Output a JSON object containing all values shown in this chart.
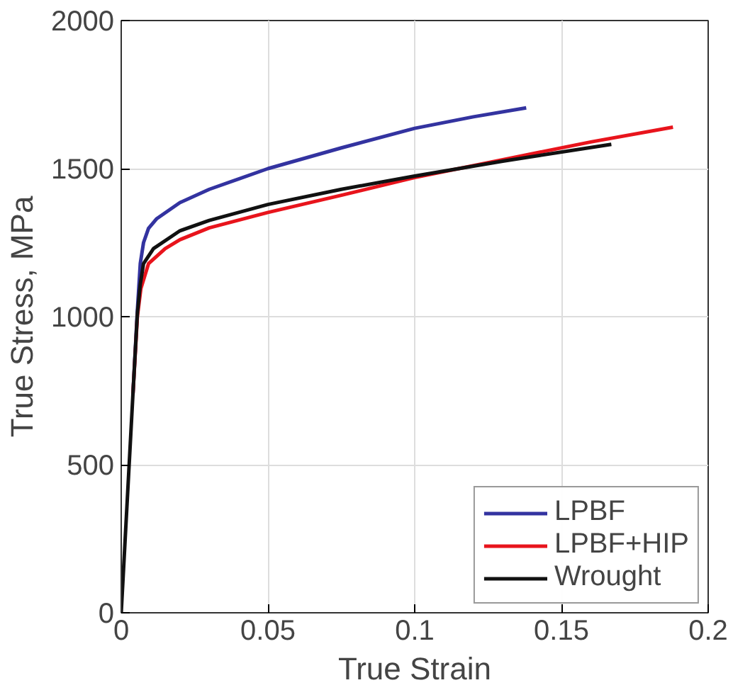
{
  "chart_data": {
    "type": "line",
    "xlabel": "True Strain",
    "ylabel": "True Stress, MPa",
    "xlim": [
      0,
      0.2
    ],
    "ylim": [
      0,
      2000
    ],
    "xticks": [
      0,
      0.05,
      0.1,
      0.15,
      0.2
    ],
    "yticks": [
      0,
      500,
      1000,
      1500,
      2000
    ],
    "grid": true,
    "legend": "bottom right",
    "line_style": "solid",
    "series": [
      {
        "name": "LPBF",
        "color": "#3333a0",
        "x": [
          0.004,
          0.0055,
          0.0065,
          0.0076,
          0.0093,
          0.012,
          0.02,
          0.03,
          0.05,
          0.075,
          0.1,
          0.12,
          0.138
        ],
        "values": [
          740,
          1020,
          1180,
          1250,
          1298,
          1330,
          1385,
          1430,
          1500,
          1570,
          1636,
          1675,
          1705
        ]
      },
      {
        "name": "LPBF+HIP",
        "color": "#e8141c",
        "x": [
          0.004,
          0.0055,
          0.0067,
          0.0093,
          0.015,
          0.02,
          0.03,
          0.05,
          0.075,
          0.1,
          0.13,
          0.16,
          0.188
        ],
        "values": [
          740,
          1000,
          1095,
          1179,
          1230,
          1260,
          1300,
          1352,
          1410,
          1470,
          1530,
          1590,
          1640
        ]
      },
      {
        "name": "Wrought",
        "color": "#111111",
        "x": [
          0,
          0.002,
          0.004,
          0.0055,
          0.0065,
          0.0076,
          0.011,
          0.02,
          0.03,
          0.05,
          0.075,
          0.1,
          0.13,
          0.167
        ],
        "values": [
          0,
          370,
          740,
          1010,
          1110,
          1179,
          1230,
          1290,
          1325,
          1379,
          1430,
          1475,
          1525,
          1582
        ]
      }
    ]
  }
}
